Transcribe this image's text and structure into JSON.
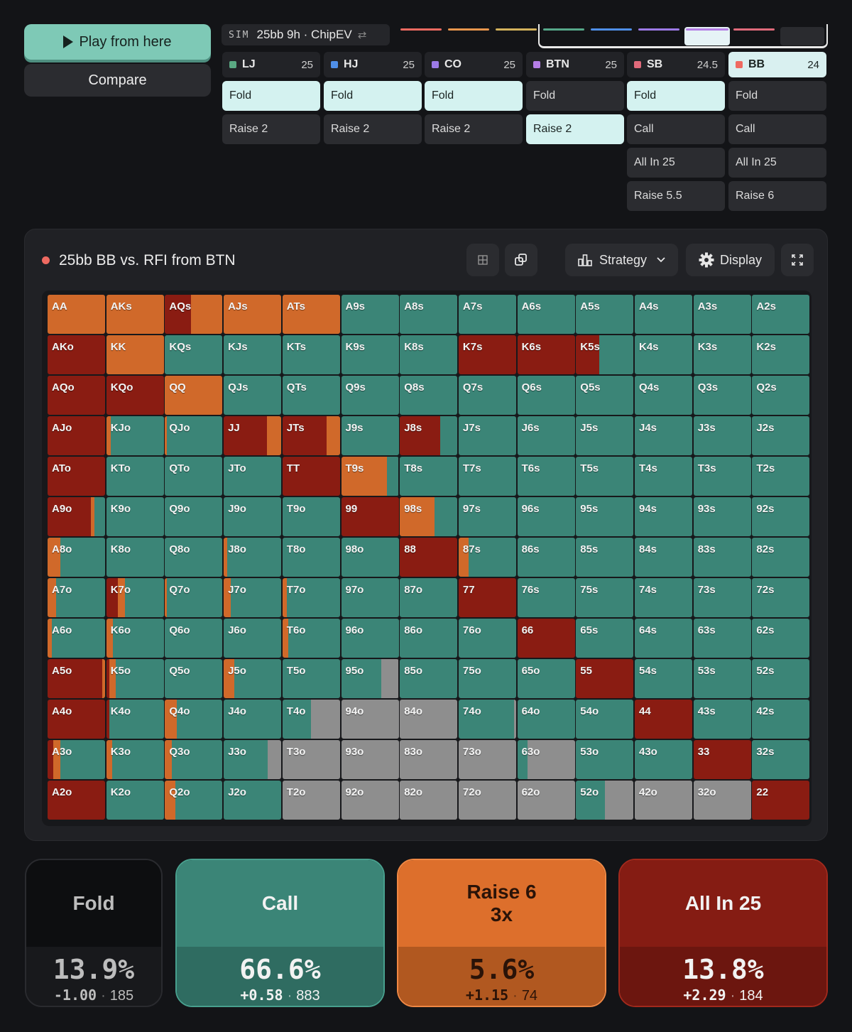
{
  "controls": {
    "play_label": "Play from here",
    "compare_label": "Compare"
  },
  "sim": {
    "tag": "SIM",
    "name": "25bb 9h · ChipEV",
    "swap_icon": "⇄"
  },
  "history_colors": [
    "#ef6a61",
    "#e8964d",
    "#d3b25c",
    "#56a88a",
    "#4f8fe8",
    "#9c7ae6",
    "#b57ee6",
    "#e06a7b",
    "#ef6a61"
  ],
  "positions": [
    {
      "name": "LJ",
      "stack": "25",
      "color": "#5aa983",
      "actions": [
        "Fold",
        "Raise 2"
      ],
      "selected": 0,
      "active": false
    },
    {
      "name": "HJ",
      "stack": "25",
      "color": "#4f8fe8",
      "actions": [
        "Fold",
        "Raise 2"
      ],
      "selected": 0,
      "active": false
    },
    {
      "name": "CO",
      "stack": "25",
      "color": "#9c7ae6",
      "actions": [
        "Fold",
        "Raise 2"
      ],
      "selected": 0,
      "active": false
    },
    {
      "name": "BTN",
      "stack": "25",
      "color": "#b57ee6",
      "actions": [
        "Fold",
        "Raise 2"
      ],
      "selected": 1,
      "active": false
    },
    {
      "name": "SB",
      "stack": "24.5",
      "color": "#e06a7b",
      "actions": [
        "Fold",
        "Call",
        "All In 25",
        "Raise 5.5"
      ],
      "selected": 0,
      "active": false
    },
    {
      "name": "BB",
      "stack": "24",
      "color": "#ef6a61",
      "actions": [
        "Fold",
        "Call",
        "All In 25",
        "Raise 6"
      ],
      "selected": -1,
      "active": true
    }
  ],
  "panel": {
    "title": "25bb BB vs. RFI from BTN",
    "grid_icon": "grid-icon",
    "copy_icon": "copy-icon",
    "strategy_label": "Strategy",
    "display_label": "Display",
    "expand_icon": "expand-icon"
  },
  "colors": {
    "fold": "#8e8e8e",
    "call": "#3b8577",
    "raise": "#d0692a",
    "allin": "#8a1c12"
  },
  "hands": [
    [
      "AA",
      "AKs",
      "AQs",
      "AJs",
      "ATs",
      "A9s",
      "A8s",
      "A7s",
      "A6s",
      "A5s",
      "A4s",
      "A3s",
      "A2s"
    ],
    [
      "AKo",
      "KK",
      "KQs",
      "KJs",
      "KTs",
      "K9s",
      "K8s",
      "K7s",
      "K6s",
      "K5s",
      "K4s",
      "K3s",
      "K2s"
    ],
    [
      "AQo",
      "KQo",
      "QQ",
      "QJs",
      "QTs",
      "Q9s",
      "Q8s",
      "Q7s",
      "Q6s",
      "Q5s",
      "Q4s",
      "Q3s",
      "Q2s"
    ],
    [
      "AJo",
      "KJo",
      "QJo",
      "JJ",
      "JTs",
      "J9s",
      "J8s",
      "J7s",
      "J6s",
      "J5s",
      "J4s",
      "J3s",
      "J2s"
    ],
    [
      "ATo",
      "KTo",
      "QTo",
      "JTo",
      "TT",
      "T9s",
      "T8s",
      "T7s",
      "T6s",
      "T5s",
      "T4s",
      "T3s",
      "T2s"
    ],
    [
      "A9o",
      "K9o",
      "Q9o",
      "J9o",
      "T9o",
      "99",
      "98s",
      "97s",
      "96s",
      "95s",
      "94s",
      "93s",
      "92s"
    ],
    [
      "A8o",
      "K8o",
      "Q8o",
      "J8o",
      "T8o",
      "98o",
      "88",
      "87s",
      "86s",
      "85s",
      "84s",
      "83s",
      "82s"
    ],
    [
      "A7o",
      "K7o",
      "Q7o",
      "J7o",
      "T7o",
      "97o",
      "87o",
      "77",
      "76s",
      "75s",
      "74s",
      "73s",
      "72s"
    ],
    [
      "A6o",
      "K6o",
      "Q6o",
      "J6o",
      "T6o",
      "96o",
      "86o",
      "76o",
      "66",
      "65s",
      "64s",
      "63s",
      "62s"
    ],
    [
      "A5o",
      "K5o",
      "Q5o",
      "J5o",
      "T5o",
      "95o",
      "85o",
      "75o",
      "65o",
      "55",
      "54s",
      "53s",
      "52s"
    ],
    [
      "A4o",
      "K4o",
      "Q4o",
      "J4o",
      "T4o",
      "94o",
      "84o",
      "74o",
      "64o",
      "54o",
      "44",
      "43s",
      "42s"
    ],
    [
      "A3o",
      "K3o",
      "Q3o",
      "J3o",
      "T3o",
      "93o",
      "83o",
      "73o",
      "63o",
      "53o",
      "43o",
      "33",
      "32s"
    ],
    [
      "A2o",
      "K2o",
      "Q2o",
      "J2o",
      "T2o",
      "92o",
      "82o",
      "72o",
      "62o",
      "52o",
      "42o",
      "32o",
      "22"
    ]
  ],
  "strategy": {
    "AA": {
      "r": 1
    },
    "AKs": {
      "r": 1
    },
    "AQs": {
      "a": 0.45,
      "r": 0.55
    },
    "AJs": {
      "r": 1
    },
    "ATs": {
      "r": 1
    },
    "AKo": {
      "a": 1
    },
    "KK": {
      "r": 1
    },
    "QQ": {
      "r": 1
    },
    "AQo": {
      "a": 1
    },
    "KQo": {
      "a": 1
    },
    "K7s": {
      "a": 1
    },
    "K6s": {
      "a": 1
    },
    "K5s": {
      "a": 0.4,
      "c": 0.6
    },
    "AJo": {
      "a": 1
    },
    "KJo": {
      "r": 0.08,
      "c": 0.92
    },
    "QJo": {
      "r": 0.03,
      "c": 0.97
    },
    "JJ": {
      "a": 0.75,
      "r": 0.25
    },
    "JTs": {
      "a": 0.77,
      "r": 0.23
    },
    "J8s": {
      "a": 0.7,
      "c": 0.3
    },
    "ATo": {
      "a": 1
    },
    "TT": {
      "a": 1
    },
    "T9s": {
      "r": 0.8,
      "c": 0.2
    },
    "A9o": {
      "a": 0.75,
      "r": 0.07,
      "c": 0.18
    },
    "99": {
      "a": 1
    },
    "98s": {
      "r": 0.6,
      "c": 0.4
    },
    "A8o": {
      "r": 0.22,
      "c": 0.78
    },
    "J8o": {
      "r": 0.06,
      "c": 0.94
    },
    "88": {
      "a": 1
    },
    "87s": {
      "r": 0.18,
      "c": 0.82
    },
    "A7o": {
      "r": 0.15,
      "c": 0.85
    },
    "K7o": {
      "a": 0.2,
      "r": 0.12,
      "c": 0.68
    },
    "Q7o": {
      "r": 0.03,
      "c": 0.97
    },
    "J7o": {
      "r": 0.12,
      "c": 0.88
    },
    "T7o": {
      "r": 0.08,
      "c": 0.92
    },
    "77": {
      "a": 1
    },
    "A6o": {
      "r": 0.08,
      "c": 0.92
    },
    "K6o": {
      "r": 0.12,
      "c": 0.88
    },
    "T6o": {
      "r": 0.1,
      "c": 0.9
    },
    "66": {
      "a": 1
    },
    "A5o": {
      "a": 0.95,
      "r": 0.05
    },
    "K5o": {
      "a": 0.05,
      "r": 0.12,
      "c": 0.83
    },
    "J5o": {
      "r": 0.18,
      "c": 0.82
    },
    "95o": {
      "c": 0.7,
      "f": 0.3
    },
    "55": {
      "a": 1
    },
    "A4o": {
      "a": 1
    },
    "K4o": {
      "a": 0.05,
      "c": 0.95
    },
    "Q4o": {
      "r": 0.2,
      "c": 0.8
    },
    "T4o": {
      "c": 0.5,
      "f": 0.5
    },
    "94o": {
      "f": 1
    },
    "84o": {
      "f": 1
    },
    "74o": {
      "c": 0.96,
      "f": 0.04
    },
    "44": {
      "a": 1
    },
    "A3o": {
      "a": 0.1,
      "r": 0.12,
      "c": 0.78
    },
    "K3o": {
      "r": 0.1,
      "c": 0.9
    },
    "Q3o": {
      "r": 0.12,
      "c": 0.88
    },
    "J3o": {
      "c": 0.76,
      "f": 0.24
    },
    "T3o": {
      "f": 1
    },
    "93o": {
      "f": 1
    },
    "83o": {
      "f": 1
    },
    "73o": {
      "f": 1
    },
    "63o": {
      "c": 0.18,
      "f": 0.82
    },
    "33": {
      "a": 1
    },
    "A2o": {
      "a": 1
    },
    "Q2o": {
      "r": 0.18,
      "c": 0.82
    },
    "T2o": {
      "f": 1
    },
    "92o": {
      "f": 1
    },
    "82o": {
      "f": 1
    },
    "72o": {
      "f": 1
    },
    "62o": {
      "f": 1
    },
    "52o": {
      "c": 0.5,
      "f": 0.5
    },
    "42o": {
      "f": 1
    },
    "32o": {
      "f": 1
    },
    "22": {
      "a": 1
    }
  },
  "summary": [
    {
      "label": "Fold",
      "pct": "13.9%",
      "ev": "-1.00",
      "combos": "185",
      "top_bg": "#0d0e10",
      "bot_bg": "#18191c",
      "border": "#2a2b2f",
      "fg": "#bdbdbd"
    },
    {
      "label": "Call",
      "pct": "66.6%",
      "ev": "+0.58",
      "combos": "883",
      "top_bg": "#3b8577",
      "bot_bg": "#2f6c61",
      "border": "#48a08e",
      "fg": "#f2f2f2"
    },
    {
      "label": "Raise 6\n3x",
      "pct": "5.6%",
      "ev": "+1.15",
      "combos": "74",
      "top_bg": "#dd6f2c",
      "bot_bg": "#b15820",
      "border": "#f08844",
      "fg": "#2a1308"
    },
    {
      "label": "All In 25",
      "pct": "13.8%",
      "ev": "+2.29",
      "combos": "184",
      "top_bg": "#851c13",
      "bot_bg": "#6c160f",
      "border": "#a3291c",
      "fg": "#f2f2f2"
    }
  ]
}
